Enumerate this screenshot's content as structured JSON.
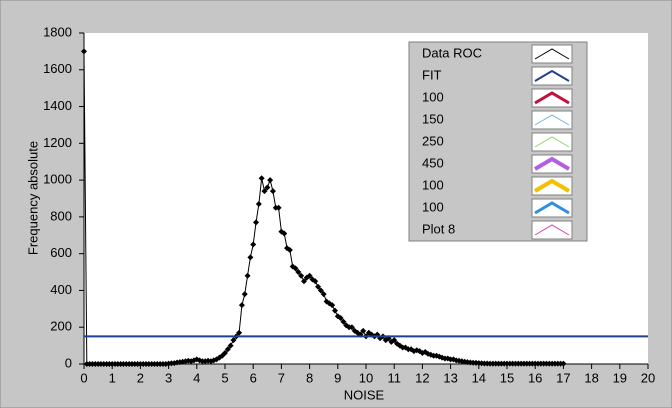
{
  "chart_data": {
    "type": "line",
    "xlabel": "NOISE",
    "ylabel": "Frequency absolute",
    "xlim": [
      0,
      20
    ],
    "xticks": [
      0,
      1,
      2,
      3,
      4,
      5,
      6,
      7,
      8,
      9,
      10,
      11,
      12,
      13,
      14,
      15,
      16,
      17,
      18,
      19,
      20
    ],
    "ylim": [
      0,
      1800
    ],
    "yticks": [
      0,
      200,
      400,
      600,
      800,
      1000,
      1200,
      1400,
      1600,
      1800
    ],
    "grid": false,
    "legend": "top-right",
    "series": [
      {
        "name": "Data ROC",
        "color": "#000000",
        "width": 1,
        "markers": true,
        "x": [
          0,
          0.1,
          0.2,
          0.3,
          0.4,
          0.5,
          0.6,
          0.7,
          0.8,
          0.9,
          1,
          1.1,
          1.2,
          1.3,
          1.4,
          1.5,
          1.6,
          1.7,
          1.8,
          1.9,
          2,
          2.1,
          2.2,
          2.3,
          2.4,
          2.5,
          2.6,
          2.7,
          2.8,
          2.9,
          3,
          3.1,
          3.2,
          3.3,
          3.4,
          3.5,
          3.6,
          3.7,
          3.8,
          3.9,
          4,
          4.1,
          4.2,
          4.3,
          4.4,
          4.5,
          4.6,
          4.7,
          4.8,
          4.9,
          5,
          5.1,
          5.2,
          5.3,
          5.4,
          5.5,
          5.6,
          5.7,
          5.8,
          5.9,
          6,
          6.1,
          6.2,
          6.3,
          6.4,
          6.5,
          6.6,
          6.7,
          6.8,
          6.9,
          7,
          7.1,
          7.2,
          7.3,
          7.4,
          7.5,
          7.6,
          7.7,
          7.8,
          7.9,
          8,
          8.1,
          8.2,
          8.3,
          8.4,
          8.5,
          8.6,
          8.7,
          8.8,
          8.9,
          9,
          9.1,
          9.2,
          9.3,
          9.4,
          9.5,
          9.6,
          9.7,
          9.8,
          9.9,
          10,
          10.1,
          10.2,
          10.3,
          10.4,
          10.5,
          10.6,
          10.7,
          10.8,
          10.9,
          11,
          11.1,
          11.2,
          11.3,
          11.4,
          11.5,
          11.6,
          11.7,
          11.8,
          11.9,
          12,
          12.1,
          12.2,
          12.3,
          12.4,
          12.5,
          12.6,
          12.7,
          12.8,
          12.9,
          13,
          13.1,
          13.2,
          13.3,
          13.4,
          13.5,
          13.6,
          13.7,
          13.8,
          13.9,
          14,
          14.1,
          14.2,
          14.3,
          14.4,
          14.5,
          14.6,
          14.7,
          14.8,
          14.9,
          15,
          15.1,
          15.2,
          15.3,
          15.4,
          15.5,
          15.6,
          15.7,
          15.8,
          15.9,
          16,
          16.1,
          16.2,
          16.3,
          16.4,
          16.5,
          16.6,
          16.7,
          16.8,
          16.9,
          17
        ],
        "values": [
          1700,
          0,
          0,
          0,
          0,
          0,
          0,
          0,
          0,
          0,
          0,
          0,
          0,
          0,
          0,
          0,
          0,
          0,
          0,
          0,
          0,
          0,
          0,
          0,
          0,
          0,
          0,
          0,
          0,
          0,
          2,
          4,
          5,
          8,
          10,
          12,
          15,
          18,
          15,
          20,
          25,
          20,
          15,
          15,
          18,
          15,
          20,
          25,
          35,
          45,
          60,
          80,
          100,
          130,
          150,
          170,
          320,
          380,
          480,
          580,
          650,
          770,
          870,
          1010,
          940,
          960,
          1000,
          940,
          850,
          850,
          720,
          710,
          630,
          620,
          530,
          520,
          500,
          480,
          450,
          470,
          480,
          460,
          450,
          420,
          400,
          380,
          340,
          330,
          320,
          290,
          260,
          250,
          230,
          210,
          200,
          200,
          180,
          170,
          160,
          180,
          150,
          170,
          160,
          150,
          160,
          140,
          150,
          130,
          140,
          120,
          130,
          110,
          100,
          90,
          90,
          80,
          80,
          70,
          75,
          70,
          60,
          65,
          55,
          50,
          45,
          45,
          40,
          35,
          30,
          30,
          25,
          25,
          20,
          18,
          15,
          12,
          10,
          8,
          7,
          6,
          5,
          4,
          3,
          3,
          2,
          2,
          2,
          2,
          2,
          2,
          2,
          2,
          2,
          2,
          2,
          2,
          2,
          2,
          2,
          2,
          2,
          2,
          2,
          2,
          2,
          2,
          2,
          2,
          2,
          2,
          2
        ]
      },
      {
        "name": "FIT",
        "color": "#1f3f8f",
        "width": 2,
        "x": [
          0,
          20
        ],
        "values": [
          150,
          150
        ]
      },
      {
        "name": "100",
        "color": "#c0103c",
        "width": 3,
        "x": [],
        "values": []
      },
      {
        "name": "150",
        "color": "#6fb4e8",
        "width": 1,
        "x": [],
        "values": []
      },
      {
        "name": "250",
        "color": "#8fd86f",
        "width": 1,
        "x": [],
        "values": []
      },
      {
        "name": "450",
        "color": "#b060e0",
        "width": 4,
        "x": [],
        "values": []
      },
      {
        "name": "100",
        "color": "#f4c000",
        "width": 4,
        "x": [],
        "values": []
      },
      {
        "name": "100",
        "color": "#2f8fe0",
        "width": 3,
        "x": [],
        "values": []
      },
      {
        "name": "Plot 8",
        "color": "#d040b0",
        "width": 1,
        "x": [],
        "values": []
      }
    ]
  }
}
